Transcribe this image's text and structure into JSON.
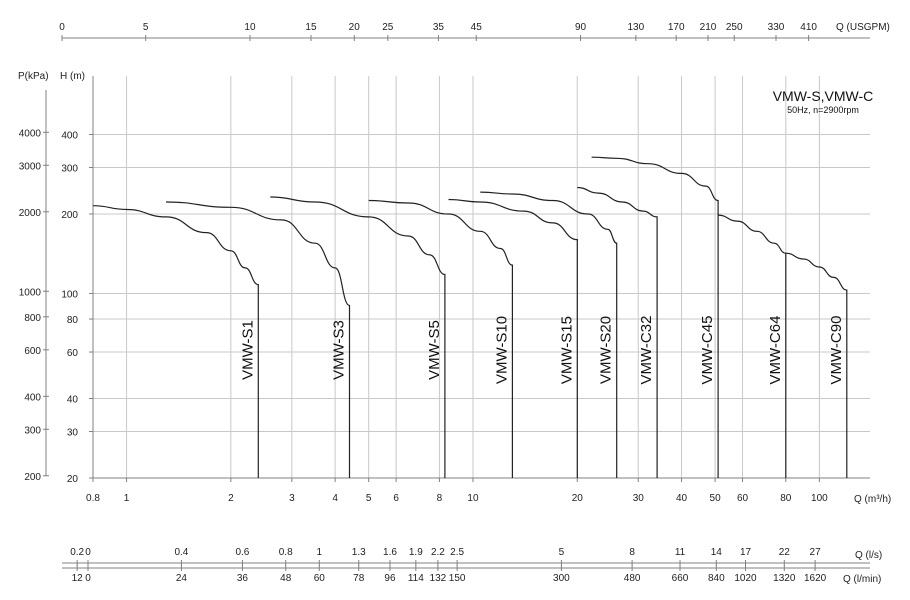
{
  "chart_data": {
    "type": "line",
    "title": "VMW-S,VMW-C",
    "subtitle": "50Hz, n=2900rpm",
    "x_scale": "log",
    "y_scale": "log",
    "xlim": [
      0.8,
      140
    ],
    "ylim": [
      20,
      600
    ],
    "grid": true,
    "ylabel": "H (m)",
    "ylabel_pressure": "P(kPa)",
    "xlabel": "Q (m³/h)",
    "x_ticks": [
      "0.8",
      "1",
      "2",
      "3",
      "4",
      "5",
      "6",
      "8",
      "10",
      "20",
      "30",
      "40",
      "50",
      "60",
      "80",
      "100"
    ],
    "y_ticks": [
      "20",
      "30",
      "40",
      "60",
      "80",
      "100",
      "200",
      "300",
      "400"
    ],
    "pressure_ticks": [
      "200",
      "300",
      "400",
      "600",
      "800",
      "1000",
      "2000",
      "3000",
      "4000"
    ],
    "top_axis": {
      "label": "Q (USGPM)",
      "ticks": [
        "0",
        "5",
        "10",
        "15",
        "20",
        "25",
        "35",
        "45",
        "90",
        "130",
        "170",
        "210",
        "250",
        "330",
        "410"
      ]
    },
    "lps_axis": {
      "label": "Q (l/s)",
      "ticks": [
        "0",
        "0.2",
        "0.4",
        "0.6",
        "0.8",
        "1",
        "1.3",
        "1.6",
        "1.9",
        "2.2",
        "2.5",
        "5",
        "8",
        "11",
        "14",
        "17",
        "22",
        "27"
      ]
    },
    "lpm_axis": {
      "label": "Q (l/min)",
      "ticks": [
        "0",
        "12",
        "24",
        "36",
        "48",
        "60",
        "78",
        "96",
        "114",
        "132",
        "150",
        "300",
        "480",
        "660",
        "840",
        "1020",
        "1320",
        "1620"
      ]
    },
    "series": [
      {
        "name": "VMW-S1",
        "x": [
          0.8,
          1.0,
          1.3,
          1.7,
          2.0,
          2.2,
          2.4
        ],
        "y": [
          215,
          208,
          195,
          170,
          145,
          125,
          108
        ]
      },
      {
        "name": "VMW-S3",
        "x": [
          1.3,
          2.0,
          2.8,
          3.5,
          4.0,
          4.4
        ],
        "y": [
          222,
          212,
          190,
          155,
          125,
          90
        ]
      },
      {
        "name": "VMW-S5",
        "x": [
          2.6,
          3.5,
          5.0,
          6.5,
          7.5,
          8.3
        ],
        "y": [
          232,
          222,
          195,
          165,
          140,
          118
        ]
      },
      {
        "name": "VMW-S10",
        "x": [
          5.0,
          6.5,
          8.5,
          10.5,
          12.0,
          13.0
        ],
        "y": [
          225,
          220,
          200,
          172,
          148,
          128
        ]
      },
      {
        "name": "VMW-S15",
        "x": [
          8.5,
          10.5,
          14.0,
          17.0,
          20.0
        ],
        "y": [
          227,
          222,
          205,
          185,
          160
        ]
      },
      {
        "name": "VMW-S20",
        "x": [
          10.5,
          13.0,
          17.0,
          21.5,
          24.5,
          26.0
        ],
        "y": [
          242,
          238,
          225,
          200,
          175,
          155
        ]
      },
      {
        "name": "VMW-C32",
        "x": [
          20.0,
          23.0,
          27.0,
          31.0,
          34.0
        ],
        "y": [
          252,
          240,
          222,
          205,
          195
        ]
      },
      {
        "name": "VMW-C45",
        "x": [
          22.0,
          26.0,
          32.0,
          40.0,
          47.0,
          51.0
        ],
        "y": [
          328,
          325,
          310,
          285,
          255,
          225
        ]
      },
      {
        "name": "VMW-C64",
        "x": [
          51.0,
          58.0,
          66.0,
          74.0,
          80.0
        ],
        "y": [
          198,
          188,
          172,
          155,
          142
        ]
      },
      {
        "name": "VMW-C90",
        "x": [
          80.0,
          90.0,
          100.0,
          110.0,
          120.0
        ],
        "y": [
          142,
          135,
          126,
          115,
          103
        ]
      }
    ]
  }
}
